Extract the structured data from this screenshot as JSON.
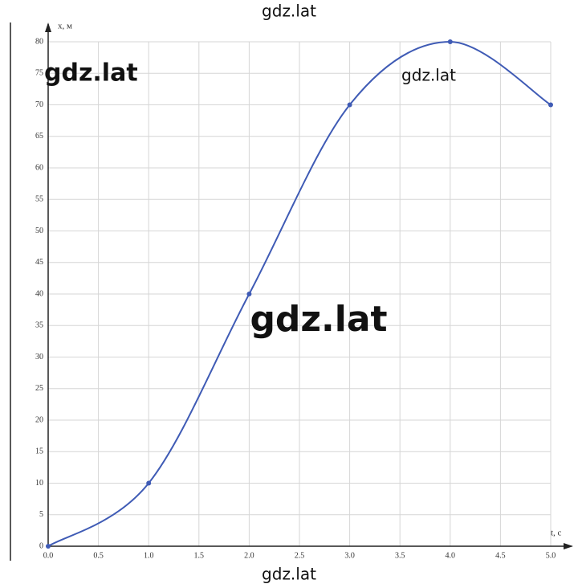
{
  "chart_data": {
    "type": "line",
    "x_label": "t, с",
    "y_label": "x, м",
    "x": [
      0,
      1,
      2,
      3,
      4,
      5
    ],
    "values": [
      0,
      10,
      40,
      70,
      80,
      70
    ],
    "color": "#3f5bb5",
    "xlim": [
      0,
      5
    ],
    "ylim": [
      0,
      80
    ],
    "xticks": [
      {
        "value": 0,
        "label": "0.0"
      },
      {
        "value": 0.5,
        "label": "0.5"
      },
      {
        "value": 1,
        "label": "1.0"
      },
      {
        "value": 1.5,
        "label": "1.5"
      },
      {
        "value": 2,
        "label": "2.0"
      },
      {
        "value": 2.5,
        "label": "2.5"
      },
      {
        "value": 3,
        "label": "3.0"
      },
      {
        "value": 3.5,
        "label": "3.5"
      },
      {
        "value": 4,
        "label": "4.0"
      },
      {
        "value": 4.5,
        "label": "4.5"
      },
      {
        "value": 5,
        "label": "5.0"
      }
    ],
    "yticks": [
      0,
      5,
      10,
      15,
      20,
      25,
      30,
      35,
      40,
      45,
      50,
      55,
      60,
      65,
      70,
      75,
      80
    ],
    "grid": true,
    "smooth": true,
    "annotations": [
      "gdz.lat",
      "gdz.lat",
      "gdz.lat",
      "gdz.lat",
      "gdz.lat"
    ]
  }
}
